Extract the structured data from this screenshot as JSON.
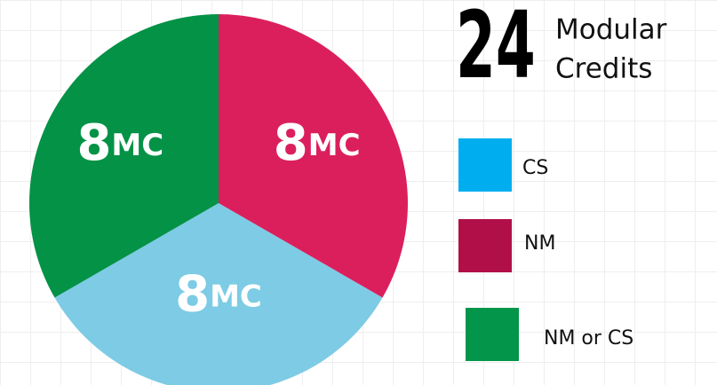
{
  "chart_data": {
    "type": "pie",
    "total": 24,
    "total_label": [
      "Modular",
      "Credits"
    ],
    "categories": [
      "NM",
      "CS",
      "NM or CS"
    ],
    "values": [
      8,
      8,
      8
    ],
    "unit": "MC",
    "colors": [
      "#db1f5d",
      "#7dcbe5",
      "#039246"
    ],
    "legend_colors": [
      "#b10f47",
      "#00aeef",
      "#03954a"
    ]
  }
}
